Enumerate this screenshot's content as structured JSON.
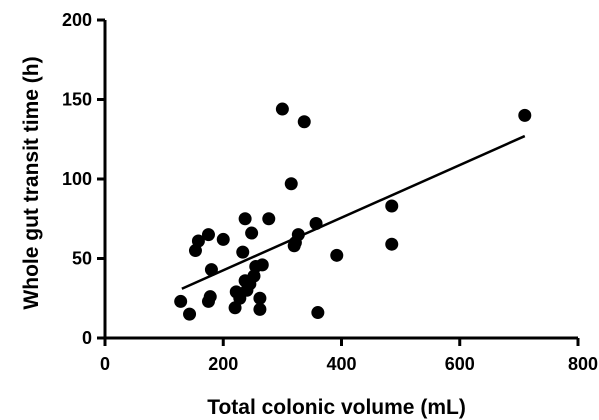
{
  "chart_data": {
    "type": "scatter",
    "xlabel": "Total colonic volume (mL)",
    "ylabel": "Whole gut transit time (h)",
    "xlim": [
      0,
      800
    ],
    "ylim": [
      0,
      200
    ],
    "xticks": [
      0,
      200,
      400,
      600,
      800
    ],
    "yticks": [
      0,
      50,
      100,
      150,
      200
    ],
    "grid": false,
    "points": [
      {
        "x": 128,
        "y": 23
      },
      {
        "x": 143,
        "y": 15
      },
      {
        "x": 153,
        "y": 55
      },
      {
        "x": 158,
        "y": 61
      },
      {
        "x": 175,
        "y": 65
      },
      {
        "x": 175,
        "y": 23
      },
      {
        "x": 178,
        "y": 26
      },
      {
        "x": 180,
        "y": 43
      },
      {
        "x": 200,
        "y": 62
      },
      {
        "x": 220,
        "y": 19
      },
      {
        "x": 222,
        "y": 29
      },
      {
        "x": 228,
        "y": 25
      },
      {
        "x": 233,
        "y": 54
      },
      {
        "x": 237,
        "y": 75
      },
      {
        "x": 237,
        "y": 36
      },
      {
        "x": 240,
        "y": 30
      },
      {
        "x": 245,
        "y": 34
      },
      {
        "x": 248,
        "y": 66
      },
      {
        "x": 252,
        "y": 39
      },
      {
        "x": 255,
        "y": 45
      },
      {
        "x": 262,
        "y": 25
      },
      {
        "x": 262,
        "y": 18
      },
      {
        "x": 266,
        "y": 46
      },
      {
        "x": 277,
        "y": 75
      },
      {
        "x": 300,
        "y": 144
      },
      {
        "x": 315,
        "y": 97
      },
      {
        "x": 320,
        "y": 58
      },
      {
        "x": 322,
        "y": 60
      },
      {
        "x": 327,
        "y": 65
      },
      {
        "x": 337,
        "y": 136
      },
      {
        "x": 357,
        "y": 72
      },
      {
        "x": 360,
        "y": 16
      },
      {
        "x": 392,
        "y": 52
      },
      {
        "x": 485,
        "y": 83
      },
      {
        "x": 485,
        "y": 59
      },
      {
        "x": 710,
        "y": 140
      }
    ],
    "trend_line": {
      "x1": 130,
      "y1": 31,
      "x2": 710,
      "y2": 127
    }
  }
}
